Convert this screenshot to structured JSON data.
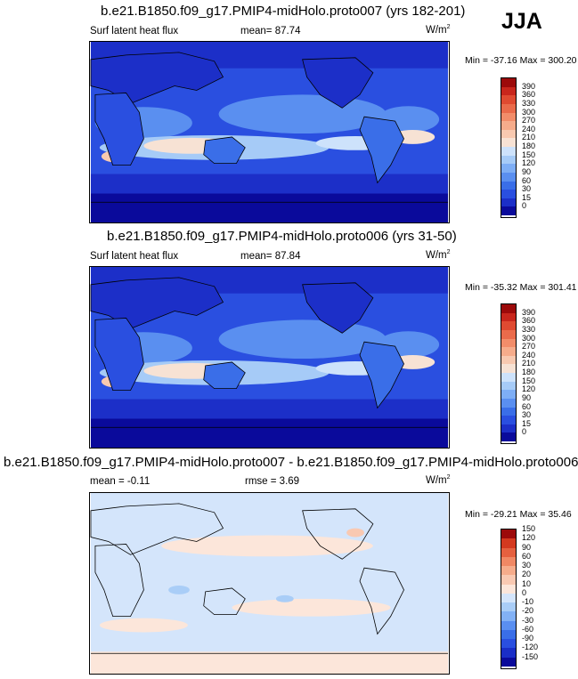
{
  "season": "JJA",
  "colors": {
    "positive_scale": [
      "#0a0a9b",
      "#1c2fc8",
      "#2a4fe0",
      "#3a6ee8",
      "#5a8ff0",
      "#7eaef5",
      "#a6cbf7",
      "#cde2fb",
      "#f7e2d4",
      "#f8c9b0",
      "#f6ac8b",
      "#f28d6a",
      "#ea6b4b",
      "#df4a31",
      "#c8261c",
      "#9c0a0a"
    ],
    "diff_scale": [
      "#0a0a9b",
      "#1a2ec7",
      "#2a4fe0",
      "#3a6ee8",
      "#5a8ff0",
      "#82b1f5",
      "#a9cdf7",
      "#d4e5fb",
      "#fce6da",
      "#f9c9b2",
      "#f6ac8b",
      "#f08864",
      "#e5603f",
      "#d4391f",
      "#9c0a0a"
    ]
  },
  "panels": [
    {
      "title": "b.e21.B1850.f09_g17.PMIP4-midHolo.proto007 (yrs 182-201)",
      "left_label": "Surf latent heat flux",
      "mean_label": "mean=",
      "mean_value": "87.74",
      "units_base": "W/m",
      "units_exp": "2",
      "minmax": "Min = -37.16 Max = 300.20"
    },
    {
      "title": "b.e21.B1850.f09_g17.PMIP4-midHolo.proto006 (yrs 31-50)",
      "left_label": "Surf latent heat flux",
      "mean_label": "mean=",
      "mean_value": "87.84",
      "units_base": "W/m",
      "units_exp": "2",
      "minmax": "Min = -35.32 Max = 301.41"
    },
    {
      "title": "b.e21.B1850.f09_g17.PMIP4-midHolo.proto007 - b.e21.B1850.f09_g17.PMIP4-midHolo.proto006",
      "mean_label": "mean =",
      "mean_value": "-0.11",
      "rmse_label": "rmse =",
      "rmse_value": "3.69",
      "units_base": "W/m",
      "units_exp": "2",
      "minmax": "Min = -29.21 Max = 35.46"
    }
  ],
  "chart_data": [
    {
      "type": "heatmap",
      "title": "b.e21.B1850.f09_g17.PMIP4-midHolo.proto007 (yrs 182-201)",
      "variable": "Surf latent heat flux",
      "units": "W/m^2",
      "mean": 87.74,
      "min": -37.16,
      "max": 300.2,
      "colorbar_levels": [
        0,
        15,
        30,
        60,
        90,
        120,
        150,
        180,
        210,
        240,
        270,
        300,
        330,
        360,
        390
      ]
    },
    {
      "type": "heatmap",
      "title": "b.e21.B1850.f09_g17.PMIP4-midHolo.proto006 (yrs 31-50)",
      "variable": "Surf latent heat flux",
      "units": "W/m^2",
      "mean": 87.84,
      "min": -35.32,
      "max": 301.41,
      "colorbar_levels": [
        0,
        15,
        30,
        60,
        90,
        120,
        150,
        180,
        210,
        240,
        270,
        300,
        330,
        360,
        390
      ]
    },
    {
      "type": "heatmap",
      "title": "b.e21.B1850.f09_g17.PMIP4-midHolo.proto007 - b.e21.B1850.f09_g17.PMIP4-midHolo.proto006",
      "units": "W/m^2",
      "mean": -0.11,
      "rmse": 3.69,
      "min": -29.21,
      "max": 35.46,
      "colorbar_levels": [
        -150,
        -120,
        -90,
        -60,
        -30,
        -20,
        -10,
        0,
        10,
        20,
        30,
        60,
        90,
        120,
        150
      ]
    }
  ]
}
